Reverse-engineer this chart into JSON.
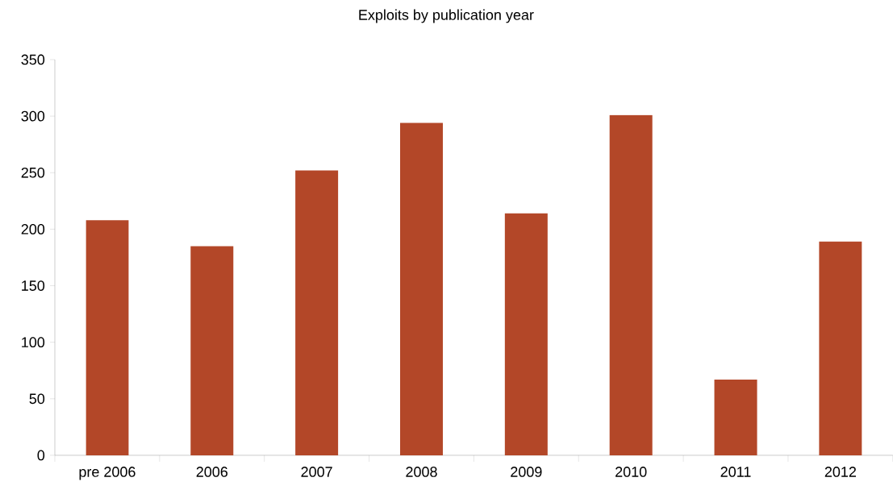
{
  "chart_data": {
    "type": "bar",
    "title": "Exploits by publication year",
    "categories": [
      "pre 2006",
      "2006",
      "2007",
      "2008",
      "2009",
      "2010",
      "2011",
      "2012"
    ],
    "values": [
      208,
      185,
      252,
      294,
      214,
      301,
      67,
      189
    ],
    "color": "#b34728",
    "ylim": [
      0,
      350
    ],
    "yticks": [
      0,
      50,
      100,
      150,
      200,
      250,
      300,
      350
    ],
    "grid": false
  }
}
